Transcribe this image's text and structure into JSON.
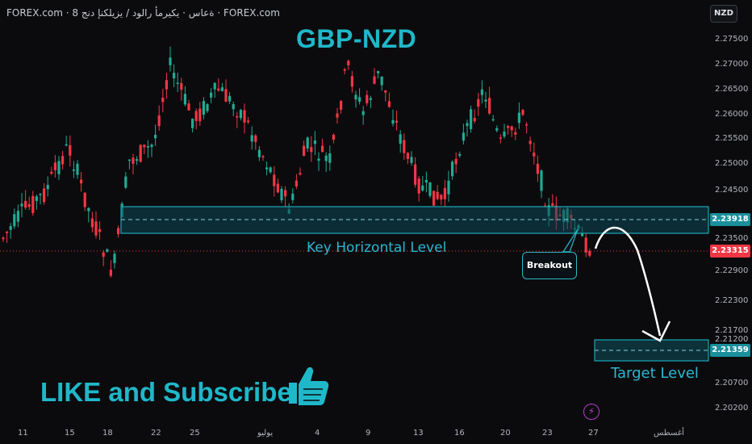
{
  "header": {
    "source": "FOREX.com · 8 ةعاس · يكيرمأ رالود / يزيلكنإ دنج · FOREX.com"
  },
  "currency_button": "NZD",
  "chart_data": {
    "type": "candlestick",
    "title": "GBP-NZD",
    "y_ticks": [
      "2.27500",
      "2.27000",
      "2.26500",
      "2.26000",
      "2.25500",
      "2.25000",
      "2.24500",
      "2.23500",
      "2.22900",
      "2.22300",
      "2.21700",
      "2.21200",
      "2.20700",
      "2.20200"
    ],
    "x_ticks": [
      "11",
      "15",
      "18",
      "22",
      "25",
      "يوليو",
      "4",
      "9",
      "13",
      "16",
      "20",
      "23",
      "27",
      "أغسطس"
    ],
    "ylim": [
      2.2,
      2.28
    ],
    "price_labels": {
      "key_level": "2.23918",
      "last_price": "2.23315",
      "target": "2.21359"
    },
    "zones": [
      {
        "name": "Key Horizontal Level",
        "from": 2.237,
        "to": 2.242,
        "mid": 2.23918
      },
      {
        "name": "Target Level",
        "from": 2.212,
        "to": 2.215,
        "mid": 2.21359
      }
    ],
    "colors": {
      "up": "#22ab94",
      "down": "#f23645",
      "zone": "#1aa6b7"
    }
  },
  "annotations": {
    "key_level_label": "Key Horizontal Level",
    "target_label": "Target Level",
    "breakout_label": "Breakout",
    "cta": "LIKE and Subscribe"
  },
  "icons": [
    "thumbs-up-icon",
    "lightning-icon"
  ]
}
